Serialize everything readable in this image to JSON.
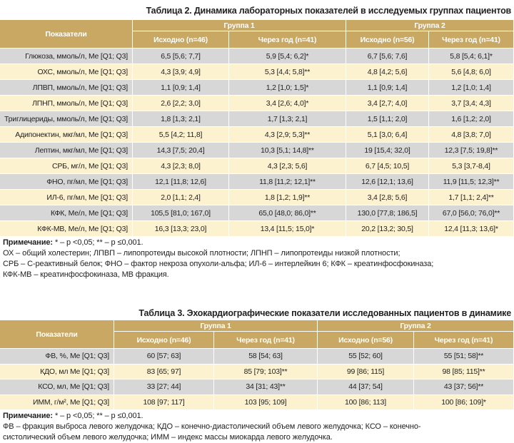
{
  "table2": {
    "title": "Таблица 2. Динамика лабораторных показателей в исследуемых группах пациентов",
    "header": {
      "indicator": "Показатели",
      "groups": [
        "Группа 1",
        "Группа 2"
      ],
      "columns": [
        "Исходно (n=46)",
        "Через год (n=41)",
        "Исходно (n=56)",
        "Через год (n=41)"
      ]
    },
    "rows": [
      [
        "Глюкоза, ммоль/л, Me [Q1; Q3]",
        "6,5 [5,6; 7,7]",
        "5,9 [5,4; 6,2]*",
        "6,7 [5,6; 7,6]",
        "5,8 [5,4; 6,1]*"
      ],
      [
        "ОХС, ммоль/л, Me [Q1; Q3]",
        "4,3 [3,9; 4,9]",
        "5,3 [4,4; 5,8]**",
        "4,8 [4,2; 5,6]",
        "5,6 [4,8; 6,0]"
      ],
      [
        "ЛПВП, ммоль/л, Me [Q1; Q3]",
        "1,1 [0,9; 1,4]",
        "1,2 [1,0; 1,5]*",
        "1,1 [0,9; 1,4]",
        "1,2 [1,0; 1,4]"
      ],
      [
        "ЛПНП, ммоль/л, Me [Q1; Q3]",
        "2,6 [2,2; 3,0]",
        "3,4 [2,6; 4,0]*",
        "3,4 [2,7; 4,0]",
        "3,7 [3,4; 4,3]"
      ],
      [
        "Триглицериды, ммоль/л, Me [Q1; Q3]",
        "1,8 [1,3; 2,1]",
        "1,7 [1,3; 2,1]",
        "1,5 [1,1; 2,0]",
        "1,6 [1,2; 2,0]"
      ],
      [
        "Адипонектин, мкг/мл, Me [Q1; Q3]",
        "5,5 [4,2; 11,8]",
        "4,3 [2,9; 5,3]**",
        "5,1 [3,0; 6,4]",
        "4,8 [3,8; 7,0]"
      ],
      [
        "Лептин, мкг/мл, Me [Q1; Q3]",
        "14,3 [7,5; 20,4]",
        "10,3 [5,1; 14,8]**",
        "19 [15,4; 32,0]",
        "12,3 [7,5; 19,8]**"
      ],
      [
        "СРБ, мг/л, Me [Q1; Q3]",
        "4,3 [2,3; 8,0]",
        "4,3 [2,3; 5,6]",
        "6,7 [4,5; 10,5]",
        "5,3 [3,7-8,4]"
      ],
      [
        "ФНО, пг/мл, Me [Q1; Q3]",
        "12,1 [11,8; 12,6]",
        "11,8 [11,2; 12,1]**",
        "12,6 [12,1; 13,6]",
        "11,9 [11,5; 12,3]**"
      ],
      [
        "ИЛ-6, пг/мл, Me [Q1; Q3]",
        "2,0 [1,1; 2,4]",
        "1,8 [1,2; 1,9]**",
        "3,4 [2,8; 5,6]",
        "1,7 [1,1; 2,4]**"
      ],
      [
        "КФК, Ме/л, Me [Q1; Q3]",
        "105,5 [81,0; 167,0]",
        "65,0 [48,0; 86,0]**",
        "130,0 [77,8; 186,5]",
        "67,0 [56,0; 76,0]**"
      ],
      [
        "КФК-МВ, Ме/л, Me [Q1; Q3]",
        "16,3 [13,3; 23,0]",
        "13,4 [11,5; 15,0]*",
        "20,2 [13,2; 30,5]",
        "12,4 [11,3; 13,6]*"
      ]
    ],
    "note_label": "Примечание:",
    "note_lines": [
      "* – p <0,05; ** – p ≤0,001.",
      "ОХ – общий холестерин; ЛПВП – липопротеиды высокой плотности; ЛПНП – липопротеиды низкой плотности;",
      "СРБ – С-реактивный белок; ФНО – фактор некроза опухоли-альфа; ИЛ-6 – интерлейкин 6; КФК – креатинфосфокиназа;",
      "КФК-МВ – креатинфосфокиназа, МВ фракция."
    ]
  },
  "table3": {
    "title": "Таблица 3. Эхокардиографические показатели исследованных пациентов в динамике",
    "header": {
      "indicator": "Показатели",
      "groups": [
        "Группа 1",
        "Группа 2"
      ],
      "columns": [
        "Исходно (n=46)",
        "Через год (n=41)",
        "Исходно (n=56)",
        "Через год (n=41)"
      ]
    },
    "rows": [
      [
        "ФВ, %, Me [Q1; Q3]",
        "60 [57; 63]",
        "58 [54; 63]",
        "55 [52; 60]",
        "55 [51; 58]**"
      ],
      [
        "КДО, мл Me [Q1; Q3]",
        "83 [65; 97]",
        "85 [79; 103]**",
        "99 [86; 115]",
        "98 [85; 115]**"
      ],
      [
        "КСО, мл, Me [Q1; Q3]",
        "33 [27; 44]",
        "34 [31; 43]**",
        "44 [37; 54]",
        "43 [37; 56]**"
      ],
      [
        "ИММ, г/м², Me [Q1; Q3]",
        "108 [97; 117]",
        "103 [95; 109]",
        "100 [86; 113]",
        "100 [86; 109]*"
      ]
    ],
    "note_label": "Примечание:",
    "note_lines": [
      "* – p <0,05; ** – p ≤0,001.",
      "ФВ – фракция выброса левого желудочка; КДО – конечно-диастолический объем левого желудочка; КСО – конечно-",
      "систолический объем левого желудочка; ИММ – индекс массы миокарда левого желудочка."
    ]
  }
}
